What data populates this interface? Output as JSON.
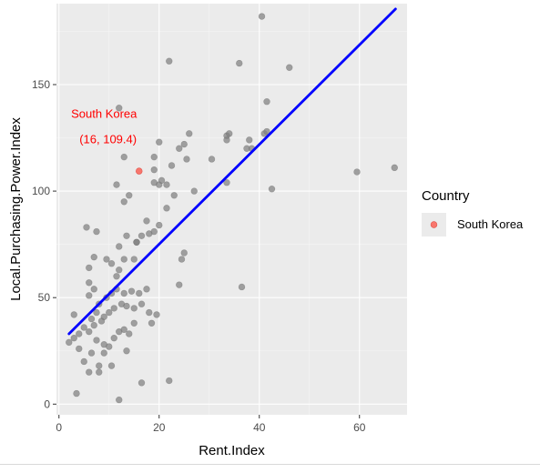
{
  "chart_data": {
    "type": "scatter",
    "xlabel": "Rent.Index",
    "ylabel": "Local.Purchasing.Power.Index",
    "xlim": [
      -0.5,
      69.5
    ],
    "ylim": [
      -5,
      188
    ],
    "x_ticks": [
      0,
      20,
      40,
      60
    ],
    "x_tick_labels": [
      "0",
      "20",
      "40",
      "60"
    ],
    "y_ticks": [
      0,
      50,
      100,
      150
    ],
    "y_tick_labels": [
      "0",
      "50",
      "100",
      "150"
    ],
    "grid": true,
    "points": [
      [
        3.5,
        5
      ],
      [
        12,
        2
      ],
      [
        22,
        11
      ],
      [
        16.5,
        10
      ],
      [
        5,
        20
      ],
      [
        6,
        15
      ],
      [
        8,
        15
      ],
      [
        8,
        18
      ],
      [
        10.5,
        18
      ],
      [
        4,
        26
      ],
      [
        6.5,
        24
      ],
      [
        9,
        24
      ],
      [
        13.5,
        25
      ],
      [
        2,
        29
      ],
      [
        3,
        31
      ],
      [
        4,
        33
      ],
      [
        6,
        34
      ],
      [
        7.5,
        30
      ],
      [
        9,
        28
      ],
      [
        10,
        27
      ],
      [
        11,
        31
      ],
      [
        12,
        34
      ],
      [
        13,
        35
      ],
      [
        14,
        33
      ],
      [
        15,
        38
      ],
      [
        7,
        37
      ],
      [
        8.5,
        39
      ],
      [
        9,
        41
      ],
      [
        10,
        43
      ],
      [
        11,
        45
      ],
      [
        12.5,
        47
      ],
      [
        13.5,
        46
      ],
      [
        15,
        45
      ],
      [
        16.5,
        47
      ],
      [
        18.5,
        38
      ],
      [
        18,
        43
      ],
      [
        19.5,
        42
      ],
      [
        3,
        42
      ],
      [
        5,
        36
      ],
      [
        6.5,
        40
      ],
      [
        7.5,
        43
      ],
      [
        8,
        47
      ],
      [
        9.5,
        50
      ],
      [
        10.5,
        52
      ],
      [
        11.5,
        54
      ],
      [
        13,
        52
      ],
      [
        14.5,
        53
      ],
      [
        16,
        52
      ],
      [
        17.5,
        54
      ],
      [
        6,
        51
      ],
      [
        7,
        54
      ],
      [
        6,
        57
      ],
      [
        6,
        64
      ],
      [
        7,
        69
      ],
      [
        9.5,
        68
      ],
      [
        10.5,
        66
      ],
      [
        12,
        63
      ],
      [
        11.5,
        60
      ],
      [
        13,
        68
      ],
      [
        15,
        68
      ],
      [
        15.5,
        76
      ],
      [
        16.5,
        79
      ],
      [
        18,
        80
      ],
      [
        19,
        81
      ],
      [
        20,
        84
      ],
      [
        12,
        74
      ],
      [
        13.5,
        79
      ],
      [
        15.5,
        76
      ],
      [
        17.5,
        86
      ],
      [
        5.5,
        83
      ],
      [
        7.5,
        81
      ],
      [
        24,
        56
      ],
      [
        24.5,
        68
      ],
      [
        25,
        71
      ],
      [
        21.5,
        92
      ],
      [
        23,
        98
      ],
      [
        27,
        100
      ],
      [
        20,
        103
      ],
      [
        20.5,
        105
      ],
      [
        21.5,
        103
      ],
      [
        19,
        104
      ],
      [
        11.5,
        103
      ],
      [
        13,
        95
      ],
      [
        14,
        98
      ],
      [
        19,
        110
      ],
      [
        20,
        123
      ],
      [
        19,
        116
      ],
      [
        22.5,
        112
      ],
      [
        24,
        120
      ],
      [
        25,
        122
      ],
      [
        26,
        127
      ],
      [
        25.5,
        115
      ],
      [
        30.5,
        115
      ],
      [
        33.5,
        126
      ],
      [
        33.5,
        104
      ],
      [
        33.5,
        124
      ],
      [
        34,
        127
      ],
      [
        37.5,
        120
      ],
      [
        38.5,
        120
      ],
      [
        38,
        124
      ],
      [
        41,
        127
      ],
      [
        41.5,
        128
      ],
      [
        41.5,
        142
      ],
      [
        46,
        158
      ],
      [
        36,
        160
      ],
      [
        22,
        161
      ],
      [
        40.5,
        182
      ],
      [
        12,
        139
      ],
      [
        13,
        116
      ],
      [
        59.5,
        109
      ],
      [
        67,
        111
      ],
      [
        42.5,
        101
      ],
      [
        36.5,
        55
      ]
    ],
    "point_color": "#808080",
    "highlight": {
      "country": "South Korea",
      "x": 16,
      "y": 109.4,
      "label_line1": "South Korea",
      "label_line2": "(16, 109.4)",
      "color": "#f8766d",
      "label_color": "#ff0000"
    },
    "regression_line": {
      "x": [
        2,
        67.2
      ],
      "y": [
        33,
        185.5
      ],
      "color": "#0000ff"
    },
    "legend": {
      "title": "Country",
      "items": [
        {
          "label": "South Korea",
          "color": "#f8766d"
        }
      ],
      "position": "right"
    },
    "colors": {
      "panel": "#ebebeb",
      "grid_major": "#ffffff",
      "axis_text": "#4d4d4d"
    }
  }
}
